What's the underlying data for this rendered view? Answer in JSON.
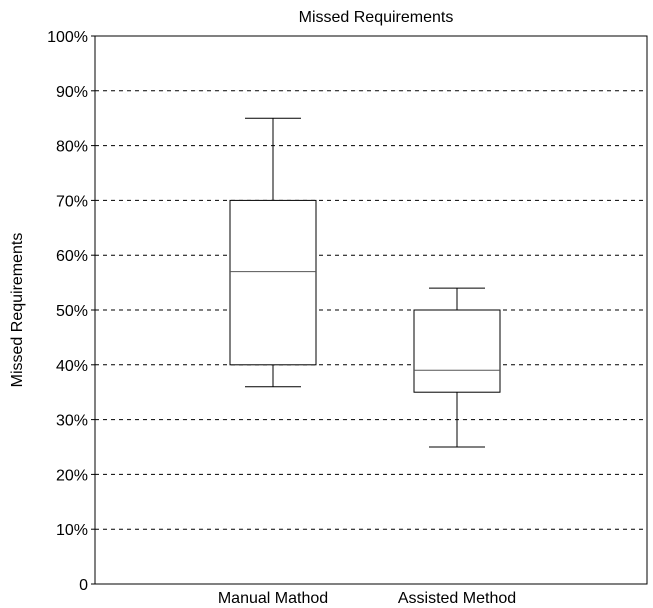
{
  "chart_data": {
    "type": "boxplot",
    "title": "Missed Requirements",
    "xlabel": "",
    "ylabel": "Missed Requirements",
    "ylim": [
      0,
      100
    ],
    "yticks": [
      {
        "value": 0,
        "label": "0"
      },
      {
        "value": 10,
        "label": "10%"
      },
      {
        "value": 20,
        "label": "20%"
      },
      {
        "value": 30,
        "label": "30%"
      },
      {
        "value": 40,
        "label": "40%"
      },
      {
        "value": 50,
        "label": "50%"
      },
      {
        "value": 60,
        "label": "60%"
      },
      {
        "value": 70,
        "label": "70%"
      },
      {
        "value": 80,
        "label": "80%"
      },
      {
        "value": 90,
        "label": "90%"
      },
      {
        "value": 100,
        "label": "100%"
      }
    ],
    "grid": "horizontal-dashed",
    "categories": [
      "Manual Mathod",
      "Assisted Method"
    ],
    "boxes": [
      {
        "category": "Manual Mathod",
        "min": 36,
        "q1": 40,
        "median": 57,
        "q3": 70,
        "max": 85
      },
      {
        "category": "Assisted Method",
        "min": 25,
        "q1": 35,
        "median": 39,
        "q3": 50,
        "max": 54
      }
    ]
  }
}
